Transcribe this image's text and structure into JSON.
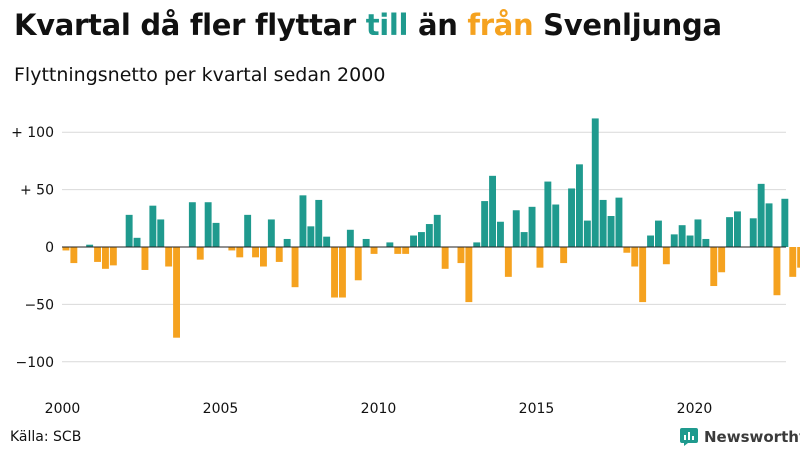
{
  "header": {
    "title_pre": "Kvartal då fler flyttar ",
    "title_till": "till",
    "title_mid": " än ",
    "title_fran": "från",
    "title_post": " Svenljunga",
    "subtitle": "Flyttningsnetto per kvartal sedan 2000"
  },
  "colors": {
    "positive": "#1f9a8e",
    "negative": "#f5a21f",
    "grid": "#d9d9d9",
    "text": "#111111"
  },
  "footer": {
    "source": "Källa: SCB",
    "brand": "Newsworthy",
    "brand_icon": "bar-chart-logo-icon"
  },
  "chart_data": {
    "type": "bar",
    "title": "Kvartal då fler flyttar till än från Svenljunga",
    "subtitle": "Flyttningsnetto per kvartal sedan 2000",
    "xlabel": "",
    "ylabel": "",
    "start": "2000 Q1",
    "ylim": [
      -115,
      120
    ],
    "y_ticks": [
      {
        "value": 100,
        "label": "+ 100"
      },
      {
        "value": 50,
        "label": "+  50"
      },
      {
        "value": 0,
        "label": "0"
      },
      {
        "value": -50,
        "label": "−50"
      },
      {
        "value": -100,
        "label": "−100"
      }
    ],
    "x_ticks": [
      {
        "year": 2000,
        "label": "2000"
      },
      {
        "year": 2005,
        "label": "2005"
      },
      {
        "year": 2010,
        "label": "2010"
      },
      {
        "year": 2015,
        "label": "2015"
      },
      {
        "year": 2020,
        "label": "2020"
      }
    ],
    "grid": true,
    "legend": "none",
    "values": [
      -3,
      -14,
      0,
      2,
      -13,
      -19,
      -16,
      0,
      28,
      8,
      -20,
      36,
      24,
      -17,
      -79,
      0,
      39,
      -11,
      39,
      21,
      0,
      -3,
      -9,
      28,
      -9,
      -17,
      24,
      -13,
      7,
      -35,
      45,
      18,
      41,
      9,
      -44,
      -44,
      15,
      -29,
      7,
      -6,
      0,
      4,
      -6,
      -6,
      10,
      13,
      20,
      28,
      -19,
      0,
      -14,
      -48,
      4,
      40,
      62,
      22,
      -26,
      32,
      13,
      35,
      -18,
      57,
      37,
      -14,
      51,
      72,
      23,
      112,
      41,
      27,
      43,
      -5,
      -17,
      -48,
      10,
      23,
      -15,
      11,
      19,
      10,
      24,
      7,
      -34,
      -22,
      26,
      31,
      0,
      25,
      55,
      38,
      -42,
      42,
      -26,
      -18
    ]
  }
}
